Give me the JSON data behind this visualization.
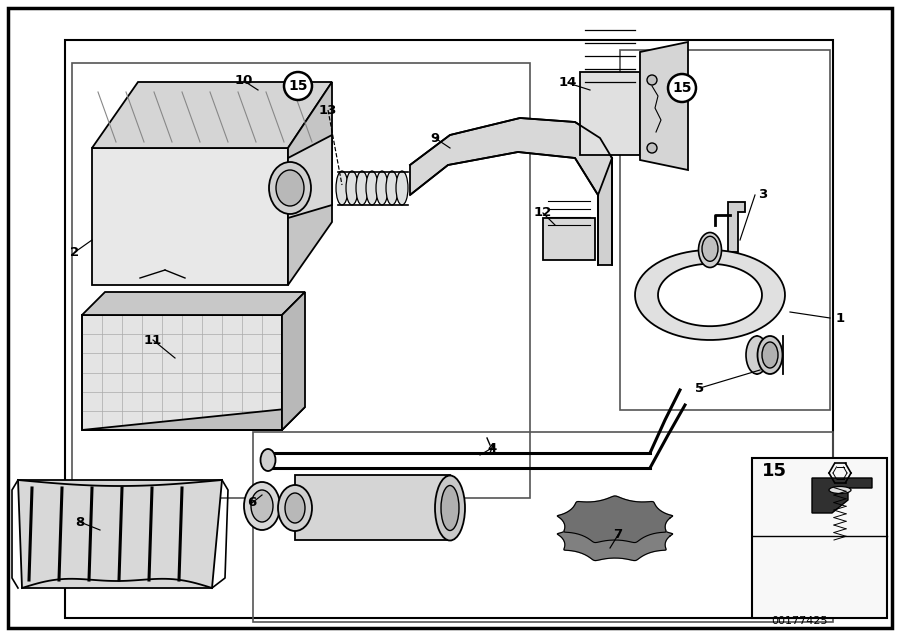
{
  "bg_color": "#ffffff",
  "line_color": "#000000",
  "part_number": "00177425",
  "fig_width": 9.0,
  "fig_height": 6.36,
  "dpi": 100,
  "gray1": "#e8e8e8",
  "gray2": "#d5d5d5",
  "gray3": "#c5c5c5",
  "gray4": "#b8b8b8",
  "gray5": "#888888",
  "gray6": "#d0d0d0"
}
